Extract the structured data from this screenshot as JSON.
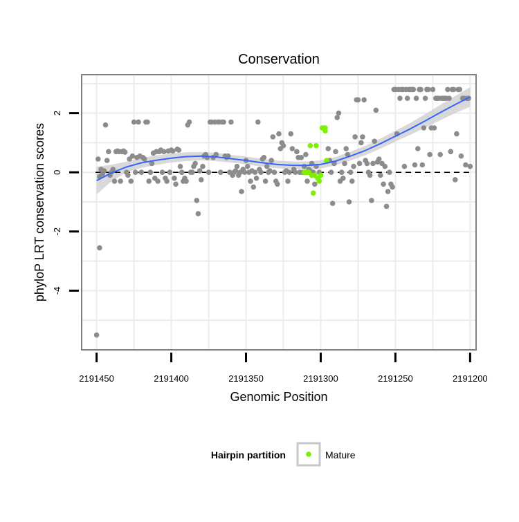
{
  "chart_data": {
    "type": "scatter",
    "title": "Conservation",
    "xlabel": "Genomic Position",
    "ylabel": "phyloP LRT conservation scores",
    "x_reversed": true,
    "xlim": [
      2191460,
      2191196
    ],
    "ylim": [
      -6.0,
      3.3
    ],
    "x_ticks": [
      2191450,
      2191400,
      2191350,
      2191300,
      2191250,
      2191200
    ],
    "x_tick_labels": [
      "2191450",
      "2191400",
      "2191350",
      "2191300",
      "2191250",
      "2191200"
    ],
    "y_ticks": [
      -4,
      -2,
      0,
      2
    ],
    "y_tick_labels": [
      "-4",
      "-2",
      "0",
      "2"
    ],
    "reference_line": {
      "y": 0,
      "style": "dashed"
    },
    "legend": {
      "title": "Hairpin partition",
      "entries": [
        {
          "label": "Mature",
          "color": "#7cf000"
        }
      ],
      "position": "bottom"
    },
    "colors": {
      "other": "#8c8c8c",
      "mature": "#7cf000",
      "smooth": "#3366ff",
      "band": "#cfcfcf",
      "panel_border": "#7f7f7f",
      "grid": "#ececec"
    },
    "series": [
      {
        "name": "Other",
        "points": [
          [
            2191450,
            -5.5
          ],
          [
            2191449,
            0.45
          ],
          [
            2191448,
            -2.55
          ],
          [
            2191448,
            -0.15
          ],
          [
            2191447,
            0.1
          ],
          [
            2191446,
            -0.05
          ],
          [
            2191445,
            0.05
          ],
          [
            2191444,
            1.6
          ],
          [
            2191443,
            0.4
          ],
          [
            2191442,
            0.7
          ],
          [
            2191441,
            -0.1
          ],
          [
            2191440,
            0.0
          ],
          [
            2191439,
            0.1
          ],
          [
            2191438,
            -0.3
          ],
          [
            2191437,
            0.7
          ],
          [
            2191436,
            0.72
          ],
          [
            2191435,
            0.7
          ],
          [
            2191434,
            -0.3
          ],
          [
            2191433,
            0.7
          ],
          [
            2191432,
            0.72
          ],
          [
            2191431,
            0.68
          ],
          [
            2191430,
            0.0
          ],
          [
            2191429,
            -0.1
          ],
          [
            2191428,
            0.45
          ],
          [
            2191427,
            -0.3
          ],
          [
            2191426,
            0.55
          ],
          [
            2191425,
            1.7
          ],
          [
            2191424,
            0.0
          ],
          [
            2191423,
            0.5
          ],
          [
            2191422,
            1.7
          ],
          [
            2191421,
            0.55
          ],
          [
            2191420,
            0.0
          ],
          [
            2191419,
            0.5
          ],
          [
            2191418,
            0.45
          ],
          [
            2191417,
            1.7
          ],
          [
            2191416,
            1.7
          ],
          [
            2191415,
            -0.3
          ],
          [
            2191414,
            0.0
          ],
          [
            2191413,
            0.3
          ],
          [
            2191412,
            0.65
          ],
          [
            2191411,
            -0.2
          ],
          [
            2191410,
            0.7
          ],
          [
            2191409,
            -0.3
          ],
          [
            2191408,
            0.7
          ],
          [
            2191407,
            0.75
          ],
          [
            2191406,
            0.0
          ],
          [
            2191405,
            0.7
          ],
          [
            2191404,
            -0.2
          ],
          [
            2191403,
            -0.3
          ],
          [
            2191402,
            0.72
          ],
          [
            2191401,
            0.0
          ],
          [
            2191400,
            0.75
          ],
          [
            2191399,
            0.72
          ],
          [
            2191398,
            -0.2
          ],
          [
            2191397,
            -0.4
          ],
          [
            2191396,
            0.78
          ],
          [
            2191395,
            0.75
          ],
          [
            2191394,
            0.2
          ],
          [
            2191393,
            0.0
          ],
          [
            2191392,
            -0.3
          ],
          [
            2191391,
            -0.2
          ],
          [
            2191390,
            -0.3
          ],
          [
            2191389,
            1.6
          ],
          [
            2191388,
            1.7
          ],
          [
            2191387,
            0.0
          ],
          [
            2191386,
            0.0
          ],
          [
            2191385,
            0.2
          ],
          [
            2191384,
            0.3
          ],
          [
            2191383,
            -0.95
          ],
          [
            2191382,
            -1.4
          ],
          [
            2191381,
            0.05
          ],
          [
            2191380,
            -0.25
          ],
          [
            2191379,
            0.2
          ],
          [
            2191378,
            0.55
          ],
          [
            2191377,
            0.6
          ],
          [
            2191376,
            0.5
          ],
          [
            2191375,
            0.0
          ],
          [
            2191374,
            1.7
          ],
          [
            2191373,
            1.7
          ],
          [
            2191372,
            0.5
          ],
          [
            2191371,
            1.7
          ],
          [
            2191370,
            0.6
          ],
          [
            2191369,
            1.7
          ],
          [
            2191368,
            1.7
          ],
          [
            2191367,
            0.0
          ],
          [
            2191366,
            1.7
          ],
          [
            2191365,
            1.7
          ],
          [
            2191364,
            0.55
          ],
          [
            2191363,
            0.5
          ],
          [
            2191362,
            0.55
          ],
          [
            2191361,
            0.0
          ],
          [
            2191360,
            1.7
          ],
          [
            2191359,
            -0.1
          ],
          [
            2191358,
            0.0
          ],
          [
            2191357,
            0.05
          ],
          [
            2191356,
            0.2
          ],
          [
            2191355,
            -0.1
          ],
          [
            2191354,
            0.0
          ],
          [
            2191353,
            -0.65
          ],
          [
            2191352,
            0.1
          ],
          [
            2191351,
            0.0
          ],
          [
            2191350,
            0.4
          ],
          [
            2191349,
            0.2
          ],
          [
            2191348,
            0.0
          ],
          [
            2191347,
            -0.3
          ],
          [
            2191346,
            0.05
          ],
          [
            2191345,
            -0.5
          ],
          [
            2191344,
            0.0
          ],
          [
            2191343,
            -0.2
          ],
          [
            2191342,
            1.7
          ],
          [
            2191341,
            0.1
          ],
          [
            2191340,
            0.0
          ],
          [
            2191339,
            0.45
          ],
          [
            2191338,
            0.5
          ],
          [
            2191337,
            -0.3
          ],
          [
            2191336,
            0.2
          ],
          [
            2191335,
            0.0
          ],
          [
            2191334,
            0.05
          ],
          [
            2191333,
            0.4
          ],
          [
            2191332,
            1.2
          ],
          [
            2191331,
            0.0
          ],
          [
            2191330,
            -0.3
          ],
          [
            2191329,
            -0.4
          ],
          [
            2191328,
            1.3
          ],
          [
            2191327,
            0.8
          ],
          [
            2191326,
            1.0
          ],
          [
            2191325,
            0.9
          ],
          [
            2191324,
            0.0
          ],
          [
            2191323,
            0.05
          ],
          [
            2191322,
            -0.3
          ],
          [
            2191321,
            0.0
          ],
          [
            2191320,
            1.3
          ],
          [
            2191319,
            0.8
          ],
          [
            2191318,
            0.1
          ],
          [
            2191317,
            0.0
          ],
          [
            2191316,
            0.7
          ],
          [
            2191315,
            0.5
          ],
          [
            2191314,
            0.0
          ],
          [
            2191313,
            0.5
          ],
          [
            2191312,
            0.0
          ],
          [
            2191311,
            0.2
          ],
          [
            2191310,
            0.6
          ],
          [
            2191309,
            -0.3
          ],
          [
            2191308,
            0.1
          ],
          [
            2191307,
            0.05
          ],
          [
            2191306,
            0.3
          ],
          [
            2191305,
            0.0
          ],
          [
            2191304,
            -0.4
          ],
          [
            2191303,
            0.2
          ],
          [
            2191302,
            -0.2
          ],
          [
            2191301,
            0.0
          ],
          [
            2191295,
            0.8
          ],
          [
            2191294,
            0.4
          ],
          [
            2191293,
            0.0
          ],
          [
            2191292,
            -1.05
          ],
          [
            2191291,
            0.3
          ],
          [
            2191290,
            0.7
          ],
          [
            2191289,
            1.85
          ],
          [
            2191288,
            2.0
          ],
          [
            2191287,
            -0.3
          ],
          [
            2191286,
            0.0
          ],
          [
            2191285,
            -0.2
          ],
          [
            2191284,
            0.3
          ],
          [
            2191283,
            0.8
          ],
          [
            2191282,
            0.6
          ],
          [
            2191281,
            -1.0
          ],
          [
            2191280,
            0.0
          ],
          [
            2191279,
            -0.3
          ],
          [
            2191278,
            0.2
          ],
          [
            2191277,
            1.2
          ],
          [
            2191276,
            2.45
          ],
          [
            2191275,
            2.45
          ],
          [
            2191274,
            0.3
          ],
          [
            2191273,
            1.0
          ],
          [
            2191272,
            1.2
          ],
          [
            2191271,
            2.45
          ],
          [
            2191270,
            0.4
          ],
          [
            2191269,
            0.3
          ],
          [
            2191268,
            0.0
          ],
          [
            2191267,
            -0.1
          ],
          [
            2191266,
            -0.95
          ],
          [
            2191265,
            0.3
          ],
          [
            2191264,
            1.05
          ],
          [
            2191263,
            2.1
          ],
          [
            2191262,
            0.35
          ],
          [
            2191261,
            0.45
          ],
          [
            2191260,
            -0.1
          ],
          [
            2191259,
            0.3
          ],
          [
            2191258,
            -0.4
          ],
          [
            2191257,
            0.2
          ],
          [
            2191256,
            -1.15
          ],
          [
            2191255,
            -0.65
          ],
          [
            2191254,
            0.0
          ],
          [
            2191253,
            -0.4
          ],
          [
            2191252,
            -0.5
          ],
          [
            2191251,
            2.8
          ],
          [
            2191250,
            2.8
          ],
          [
            2191249,
            1.3
          ],
          [
            2191248,
            2.8
          ],
          [
            2191247,
            2.5
          ],
          [
            2191246,
            2.8
          ],
          [
            2191245,
            2.8
          ],
          [
            2191244,
            0.2
          ],
          [
            2191243,
            2.8
          ],
          [
            2191242,
            2.5
          ],
          [
            2191241,
            2.8
          ],
          [
            2191240,
            2.8
          ],
          [
            2191239,
            2.8
          ],
          [
            2191238,
            2.8
          ],
          [
            2191237,
            0.25
          ],
          [
            2191236,
            2.5
          ],
          [
            2191235,
            0.8
          ],
          [
            2191234,
            2.8
          ],
          [
            2191233,
            2.8
          ],
          [
            2191232,
            0.25
          ],
          [
            2191231,
            1.5
          ],
          [
            2191230,
            2.5
          ],
          [
            2191229,
            2.8
          ],
          [
            2191228,
            2.8
          ],
          [
            2191227,
            0.6
          ],
          [
            2191226,
            1.5
          ],
          [
            2191225,
            2.8
          ],
          [
            2191224,
            1.5
          ],
          [
            2191223,
            2.5
          ],
          [
            2191222,
            2.5
          ],
          [
            2191221,
            2.5
          ],
          [
            2191220,
            0.6
          ],
          [
            2191219,
            2.5
          ],
          [
            2191218,
            2.5
          ],
          [
            2191217,
            2.5
          ],
          [
            2191216,
            2.5
          ],
          [
            2191215,
            2.8
          ],
          [
            2191214,
            2.5
          ],
          [
            2191213,
            0.7
          ],
          [
            2191212,
            2.8
          ],
          [
            2191211,
            2.8
          ],
          [
            2191210,
            -0.25
          ],
          [
            2191209,
            1.3
          ],
          [
            2191208,
            2.8
          ],
          [
            2191207,
            2.8
          ],
          [
            2191206,
            0.55
          ],
          [
            2191205,
            2.5
          ],
          [
            2191204,
            2.5
          ],
          [
            2191203,
            0.25
          ],
          [
            2191202,
            2.5
          ],
          [
            2191201,
            2.5
          ],
          [
            2191200,
            0.2
          ]
        ]
      },
      {
        "name": "Mature",
        "points": [
          [
            2191311,
            0.0
          ],
          [
            2191310,
            0.0
          ],
          [
            2191309,
            0.0
          ],
          [
            2191308,
            0.0
          ],
          [
            2191307,
            0.9
          ],
          [
            2191306,
            -0.1
          ],
          [
            2191305,
            -0.7
          ],
          [
            2191304,
            -0.1
          ],
          [
            2191303,
            0.9
          ],
          [
            2191302,
            -0.2
          ],
          [
            2191301,
            -0.3
          ],
          [
            2191300,
            -0.1
          ],
          [
            2191299,
            1.5
          ],
          [
            2191298,
            1.5
          ],
          [
            2191297,
            1.4
          ],
          [
            2191297,
            1.5
          ],
          [
            2191296,
            0.4
          ]
        ]
      }
    ],
    "smooth_line": {
      "x": [
        2191450,
        2191440,
        2191430,
        2191420,
        2191410,
        2191400,
        2191390,
        2191380,
        2191370,
        2191360,
        2191350,
        2191340,
        2191330,
        2191320,
        2191310,
        2191300,
        2191290,
        2191280,
        2191270,
        2191260,
        2191250,
        2191240,
        2191230,
        2191220,
        2191210,
        2191200
      ],
      "y": [
        -0.28,
        -0.02,
        0.18,
        0.32,
        0.41,
        0.48,
        0.53,
        0.55,
        0.52,
        0.46,
        0.4,
        0.33,
        0.27,
        0.24,
        0.23,
        0.27,
        0.38,
        0.55,
        0.74,
        0.97,
        1.22,
        1.47,
        1.74,
        2.02,
        2.29,
        2.55
      ],
      "band_lower": [
        -0.75,
        -0.3,
        0.0,
        0.15,
        0.25,
        0.33,
        0.38,
        0.41,
        0.38,
        0.33,
        0.27,
        0.2,
        0.14,
        0.11,
        0.1,
        0.13,
        0.24,
        0.4,
        0.58,
        0.8,
        1.04,
        1.27,
        1.51,
        1.76,
        2.0,
        2.22
      ],
      "band_upper": [
        0.19,
        0.26,
        0.36,
        0.49,
        0.57,
        0.63,
        0.68,
        0.69,
        0.66,
        0.59,
        0.53,
        0.46,
        0.4,
        0.37,
        0.36,
        0.41,
        0.52,
        0.7,
        0.9,
        1.14,
        1.4,
        1.67,
        1.97,
        2.28,
        2.58,
        2.88
      ]
    }
  }
}
